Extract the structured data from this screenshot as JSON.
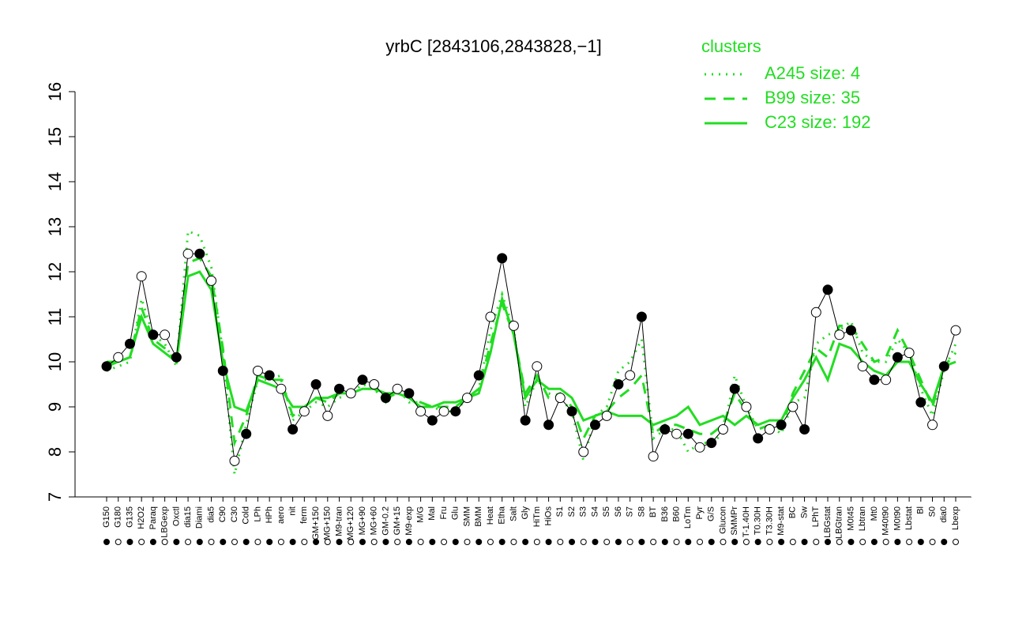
{
  "chart_data": {
    "type": "line",
    "title": "yrbC [2843106,2843828,−1]",
    "legend_title": "clusters",
    "legend_position": "top-right",
    "line_color": "#000000",
    "categories": [
      "G150",
      "G180",
      "G135",
      "H2O2",
      "Paraq",
      "LBGexp",
      "Oxctl",
      "dia15",
      "Diami",
      "dia5",
      "C90",
      "C30",
      "Cold",
      "LPh",
      "HPh",
      "aero",
      "nit",
      "ferm",
      "GM+150",
      "MG+150",
      "M9-tran",
      "MG+120",
      "MG+90",
      "MG+60",
      "GM-0.2",
      "GM+15",
      "M9-exp",
      "M/G",
      "Mal",
      "Fru",
      "Glu",
      "SMM",
      "BMM",
      "Heat",
      "Etha",
      "Salt",
      "Gly",
      "HiTm",
      "HiOs",
      "S1",
      "S2",
      "S3",
      "S4",
      "S5",
      "S6",
      "S7",
      "S8",
      "BT",
      "B36",
      "B60",
      "LoTm",
      "Pyr",
      "G/S",
      "Glucon",
      "SMMPr",
      "T-1.40H",
      "T0.30H",
      "T3.30H",
      "M9-stat",
      "BC",
      "Sw",
      "LPhT",
      "LBGstat",
      "LBGtran",
      "M0t45",
      "Lbtran",
      "Mt0",
      "M40t90",
      "M0t90",
      "Lbstat",
      "Bl",
      "S0",
      "dia0",
      "Lbexp"
    ],
    "values": [
      9.9,
      10.1,
      10.4,
      11.9,
      10.6,
      10.6,
      10.1,
      12.4,
      12.4,
      11.8,
      9.8,
      7.8,
      8.4,
      9.8,
      9.7,
      9.4,
      8.5,
      8.9,
      9.5,
      8.8,
      9.4,
      9.3,
      9.6,
      9.5,
      9.2,
      9.4,
      9.3,
      8.9,
      8.7,
      8.9,
      8.9,
      9.2,
      9.7,
      11.0,
      12.3,
      10.8,
      8.7,
      9.9,
      8.6,
      9.2,
      8.9,
      8.0,
      8.6,
      8.8,
      9.5,
      9.7,
      11.0,
      7.9,
      8.5,
      8.4,
      8.4,
      8.1,
      8.2,
      8.5,
      9.4,
      9.0,
      8.3,
      8.5,
      8.6,
      9.0,
      8.5,
      11.1,
      11.6,
      10.6,
      10.7,
      9.9,
      9.6,
      9.6,
      10.1,
      10.2,
      9.1,
      8.6,
      9.9,
      10.7
    ],
    "series": [
      {
        "name": "A245 size: 4",
        "color": "#22dd22",
        "linestyle": "dotted",
        "values": [
          9.8,
          9.9,
          10.0,
          11.4,
          10.6,
          10.4,
          9.9,
          12.9,
          12.8,
          12.1,
          10.2,
          7.5,
          8.6,
          9.6,
          9.6,
          9.7,
          8.7,
          8.9,
          9.1,
          9.0,
          9.2,
          9.3,
          9.5,
          9.4,
          9.1,
          9.4,
          9.1,
          9.1,
          9.0,
          8.9,
          8.9,
          9.2,
          9.4,
          10.7,
          11.5,
          10.7,
          9.0,
          9.6,
          9.3,
          9.2,
          8.9,
          7.8,
          8.8,
          9.0,
          9.8,
          10.0,
          10.5,
          8.3,
          8.5,
          8.5,
          8.0,
          8.2,
          8.2,
          8.4,
          9.7,
          9.0,
          8.5,
          8.6,
          8.4,
          9.1,
          9.2,
          10.4,
          10.6,
          10.7,
          10.9,
          10.2,
          10.0,
          10.0,
          10.5,
          10.2,
          9.4,
          8.8,
          9.8,
          10.4
        ]
      },
      {
        "name": "B99 size: 35",
        "color": "#22dd22",
        "linestyle": "dashed",
        "values": [
          9.9,
          10.0,
          10.1,
          11.2,
          10.5,
          10.3,
          10.0,
          12.2,
          12.3,
          11.9,
          10.3,
          8.2,
          8.8,
          9.7,
          9.6,
          9.6,
          8.8,
          9.0,
          9.2,
          9.1,
          9.3,
          9.3,
          9.4,
          9.4,
          9.2,
          9.3,
          9.2,
          9.1,
          9.0,
          9.0,
          9.0,
          9.2,
          9.4,
          10.4,
          11.3,
          10.6,
          9.3,
          9.7,
          9.2,
          9.3,
          9.0,
          8.3,
          8.8,
          8.9,
          9.2,
          9.4,
          9.7,
          8.4,
          8.6,
          8.6,
          8.5,
          8.4,
          8.4,
          8.6,
          9.3,
          8.9,
          8.5,
          8.6,
          8.5,
          9.3,
          9.8,
          10.3,
          10.1,
          10.8,
          10.8,
          10.4,
          10.0,
          10.1,
          10.7,
          10.2,
          9.6,
          9.0,
          9.9,
          10.2
        ]
      },
      {
        "name": "C23 size: 192",
        "color": "#22dd22",
        "linestyle": "solid",
        "values": [
          10.0,
          10.0,
          10.1,
          11.0,
          10.4,
          10.2,
          10.0,
          11.9,
          12.0,
          11.6,
          10.0,
          9.0,
          8.9,
          9.6,
          9.5,
          9.4,
          9.0,
          9.0,
          9.2,
          9.2,
          9.3,
          9.3,
          9.4,
          9.4,
          9.3,
          9.3,
          9.2,
          9.0,
          9.0,
          9.1,
          9.1,
          9.2,
          9.3,
          10.2,
          11.4,
          10.6,
          9.2,
          9.6,
          9.4,
          9.4,
          9.2,
          8.7,
          8.8,
          8.9,
          8.8,
          8.8,
          8.8,
          8.6,
          8.7,
          8.8,
          9.0,
          8.6,
          8.7,
          8.8,
          8.6,
          8.8,
          8.6,
          8.7,
          8.7,
          9.2,
          9.6,
          10.1,
          9.6,
          10.4,
          10.3,
          10.0,
          9.8,
          9.7,
          10.0,
          10.0,
          9.5,
          9.1,
          9.9,
          10.0
        ]
      }
    ],
    "ylim": [
      7,
      16
    ],
    "yticks": [
      7,
      8,
      9,
      10,
      11,
      12,
      13,
      14,
      15,
      16
    ]
  }
}
